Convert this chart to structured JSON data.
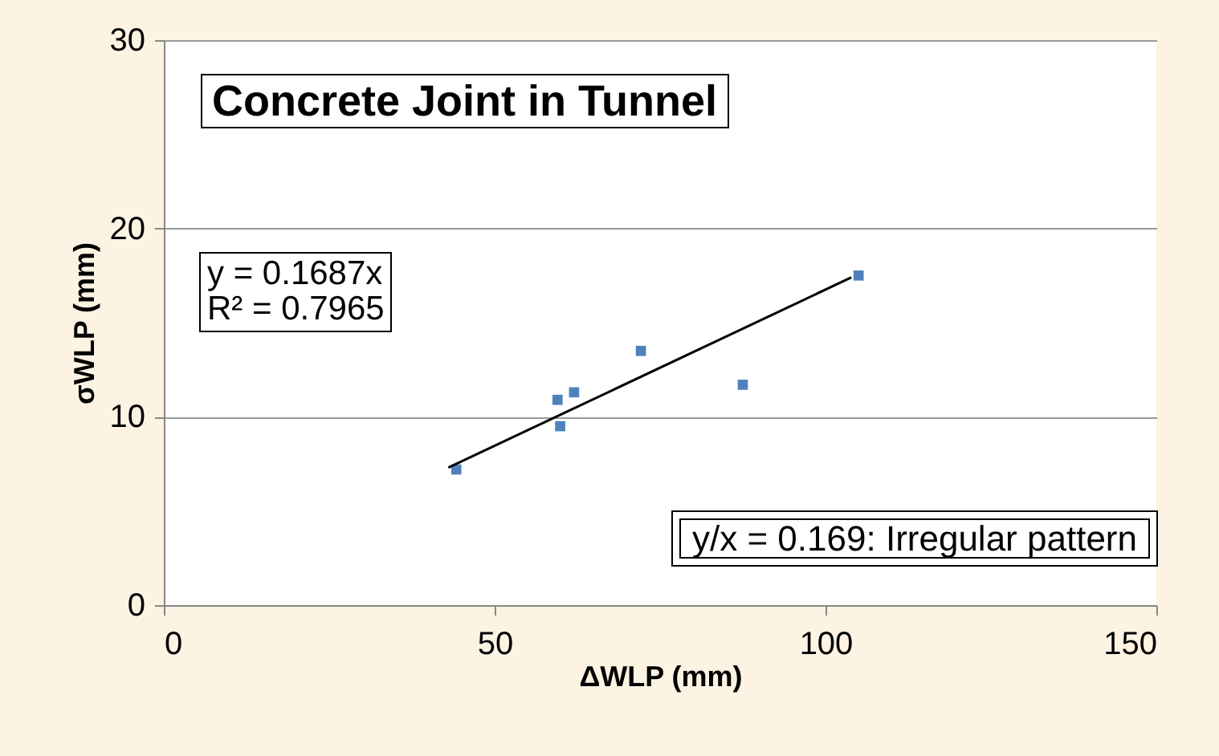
{
  "chart_data": {
    "type": "scatter",
    "title": "Concrete Joint in Tunnel",
    "xlabel": "ΔWLP (mm)",
    "ylabel": "σWLP (mm)",
    "series": [
      {
        "color": "#4f81bd",
        "marker": "square",
        "x": [
          44.2,
          59.5,
          62.0,
          59.9,
          72.1,
          87.5,
          105.0
        ],
        "values": [
          7.2,
          10.9,
          11.3,
          9.5,
          13.5,
          11.7,
          17.5
        ]
      },
      {
        "type": "line",
        "color": "#000000",
        "x": [
          43.0,
          103.9
        ],
        "values": [
          7.3,
          17.4
        ]
      }
    ],
    "xlim": [
      0,
      150
    ],
    "xticks": [
      0,
      50,
      100,
      150
    ],
    "ylim": [
      0,
      30
    ],
    "yticks": [
      0,
      10,
      20,
      30
    ],
    "grid": "y",
    "annotations": [
      "y = 0.1687x\nR² = 0.7965",
      "y/x = 0.169: Irregular pattern"
    ]
  }
}
